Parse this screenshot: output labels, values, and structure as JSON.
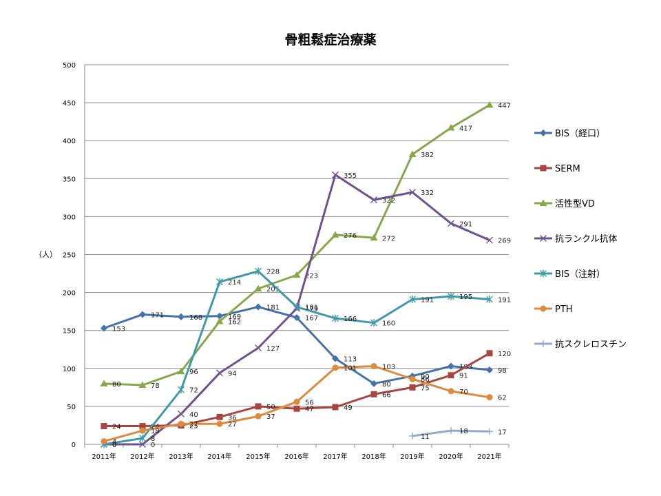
{
  "chart_data": {
    "type": "line",
    "title": "骨粗鬆症治療薬",
    "ylabel": "（人）",
    "xlabel": "",
    "ylim": [
      0,
      500
    ],
    "yticks": [
      "0",
      "50",
      "100",
      "150",
      "200",
      "250",
      "300",
      "350",
      "400",
      "450",
      "500"
    ],
    "categories": [
      "2011年",
      "2012年",
      "2013年",
      "2014年",
      "2015年",
      "2016年",
      "2017年",
      "2018年",
      "2019年",
      "2020年",
      "2021年"
    ],
    "grid": true,
    "legend_position": "right",
    "series": [
      {
        "name": "BIS（経口）",
        "color": "#4472a8",
        "marker": "diamond",
        "values": [
          153,
          171,
          168,
          169,
          181,
          167,
          113,
          80,
          90,
          103,
          98
        ]
      },
      {
        "name": "SERM",
        "color": "#a94541",
        "marker": "square",
        "values": [
          24,
          24,
          25,
          36,
          50,
          47,
          49,
          66,
          75,
          91,
          120
        ]
      },
      {
        "name": "活性型VD",
        "color": "#86a84a",
        "marker": "triangle",
        "values": [
          80,
          78,
          96,
          162,
          205,
          223,
          276,
          272,
          382,
          417,
          447
        ]
      },
      {
        "name": "抗ランクル抗体",
        "color": "#6e5190",
        "marker": "x",
        "values": [
          0,
          0,
          40,
          94,
          127,
          179,
          355,
          322,
          332,
          291,
          269
        ]
      },
      {
        "name": "BIS（注射）",
        "color": "#3e9aab",
        "marker": "star",
        "values": [
          0,
          8,
          72,
          214,
          228,
          181,
          166,
          160,
          191,
          195,
          191
        ]
      },
      {
        "name": "PTH",
        "color": "#dc8a3e",
        "marker": "circle",
        "values": [
          4,
          18,
          27,
          27,
          37,
          56,
          101,
          103,
          86,
          70,
          62
        ]
      },
      {
        "name": "抗スクレロスチン",
        "color": "#93a9cf",
        "marker": "plus",
        "values": [
          null,
          null,
          null,
          null,
          null,
          null,
          null,
          null,
          11,
          18,
          17
        ]
      }
    ]
  }
}
